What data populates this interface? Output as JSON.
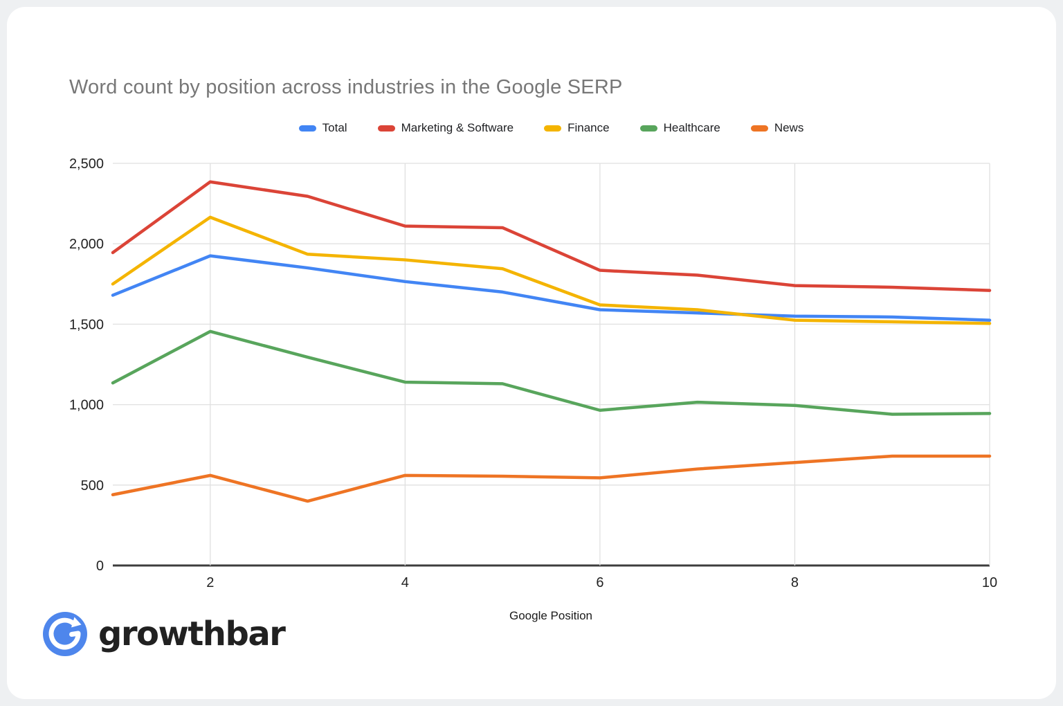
{
  "page": {
    "background_color": "#eef0f2",
    "card_color": "#ffffff"
  },
  "chart_data": {
    "type": "line",
    "title": "Word count by position across industries in the Google SERP",
    "xlabel": "Google Position",
    "ylabel": "",
    "x": [
      1,
      2,
      3,
      4,
      5,
      6,
      7,
      8,
      9,
      10
    ],
    "xlim": [
      1,
      10
    ],
    "ylim": [
      0,
      2500
    ],
    "x_ticks": [
      2,
      4,
      6,
      8,
      10
    ],
    "x_tick_labels": [
      "2",
      "4",
      "6",
      "8",
      "10"
    ],
    "y_ticks": [
      0,
      500,
      1000,
      1500,
      2000,
      2500
    ],
    "y_tick_labels": [
      "0",
      "500",
      "1,000",
      "1,500",
      "2,000",
      "2,500"
    ],
    "grid": true,
    "legend_position": "top",
    "series": [
      {
        "name": "Total",
        "color": "#4285F4",
        "values": [
          1680,
          1925,
          1850,
          1765,
          1700,
          1590,
          1570,
          1550,
          1545,
          1525
        ]
      },
      {
        "name": "Marketing & Software",
        "color": "#DB4437",
        "values": [
          1945,
          2385,
          2295,
          2110,
          2100,
          1835,
          1805,
          1740,
          1730,
          1710
        ]
      },
      {
        "name": "Finance",
        "color": "#F4B400",
        "values": [
          1750,
          2165,
          1935,
          1900,
          1845,
          1620,
          1590,
          1525,
          1515,
          1505
        ]
      },
      {
        "name": "Healthcare",
        "color": "#58A55C",
        "values": [
          1135,
          1455,
          1295,
          1140,
          1130,
          965,
          1015,
          995,
          940,
          945
        ]
      },
      {
        "name": "News",
        "color": "#EE7424",
        "values": [
          440,
          560,
          400,
          560,
          555,
          545,
          600,
          640,
          680,
          680
        ]
      }
    ],
    "style": {
      "gridline_color": "#e0e0e0",
      "axis_line_color": "#3d3d3d",
      "line_width": 4.5
    }
  },
  "logo": {
    "text": "growthbar",
    "icon": "circular-arrow-icon",
    "icon_color": "#4e86ec",
    "text_color": "#212121"
  }
}
